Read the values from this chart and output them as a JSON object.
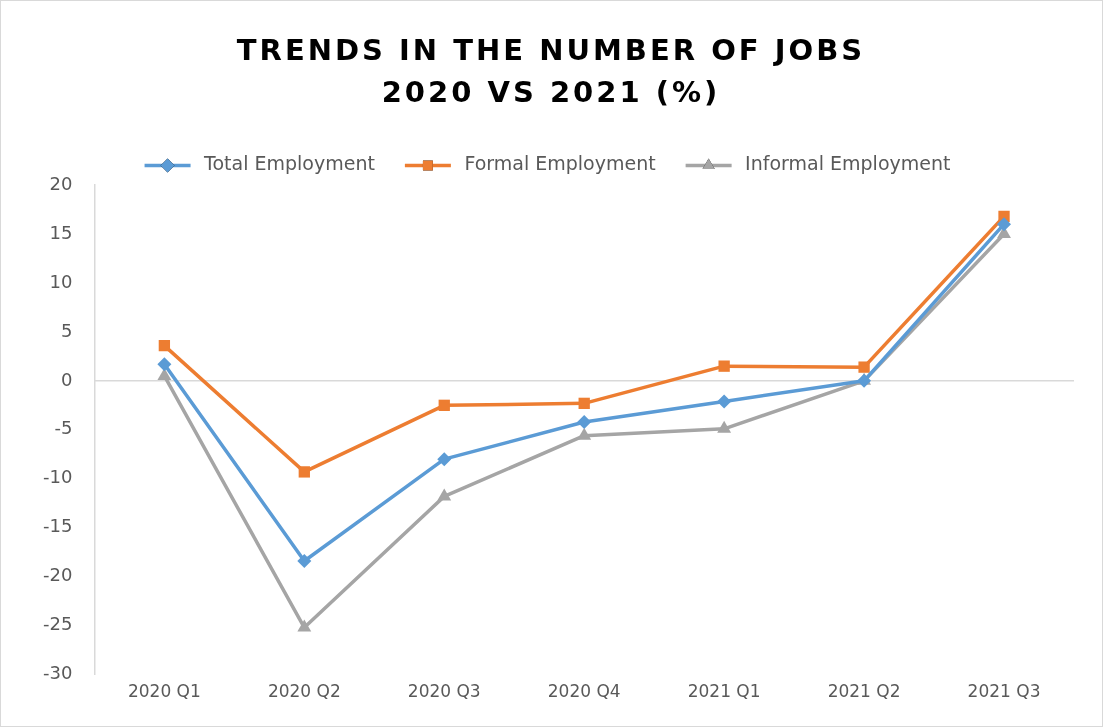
{
  "chart_data": {
    "type": "line",
    "title": "TRENDS IN THE NUMBER OF JOBS 2020 VS 2021 (%)",
    "categories": [
      "2020 Q1",
      "2020 Q2",
      "2020 Q3",
      "2020 Q4",
      "2021 Q1",
      "2021 Q2",
      "2021 Q3"
    ],
    "series": [
      {
        "name": "Total Employment",
        "color": "#5b9bd5",
        "marker": "diamond",
        "values": [
          1.7,
          -18.4,
          -8.0,
          -4.2,
          -2.1,
          0,
          16
        ]
      },
      {
        "name": "Formal Employment",
        "color": "#ed7d31",
        "marker": "square",
        "values": [
          3.6,
          -9.3,
          -2.5,
          -2.3,
          1.5,
          1.4,
          16.8
        ]
      },
      {
        "name": "Informal Employment",
        "color": "#a5a5a5",
        "marker": "triangle",
        "values": [
          0.5,
          -25.2,
          -11.8,
          -5.6,
          -4.9,
          0,
          15
        ]
      }
    ],
    "ylim": [
      -30,
      20
    ],
    "yticks": [
      -30,
      -25,
      -20,
      -15,
      -10,
      -5,
      0,
      5,
      10,
      15,
      20
    ],
    "ref_lines": [
      {
        "axis": "y",
        "value": 0,
        "color": "#d9d9d9"
      }
    ],
    "grid": false,
    "legend": "top"
  }
}
